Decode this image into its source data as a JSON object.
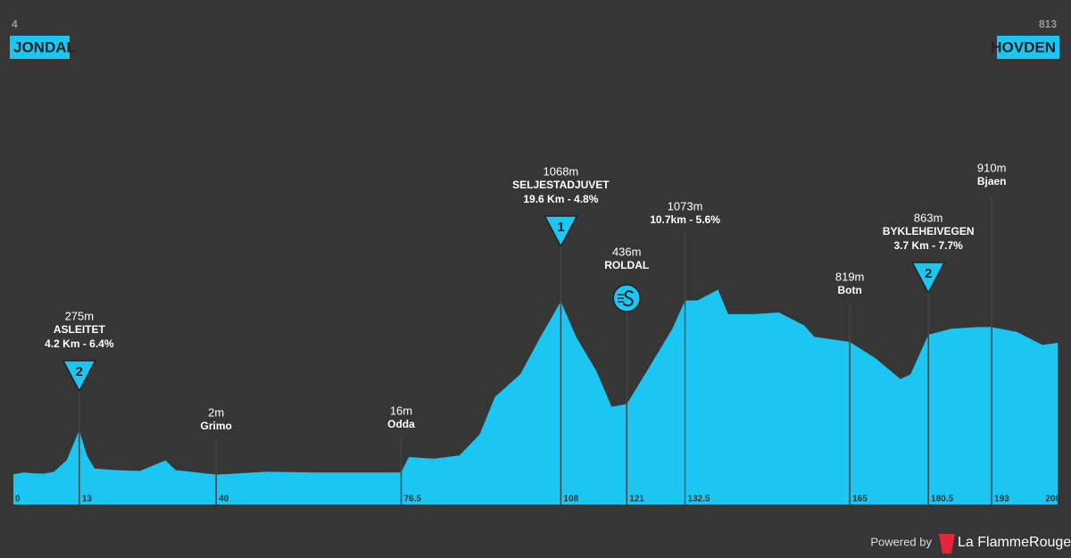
{
  "chart_data": {
    "type": "area",
    "color": "#1cc6f3",
    "xlim": [
      0,
      206
    ],
    "start": {
      "elevation": 4,
      "name": "JONDAL"
    },
    "finish": {
      "elevation": 813,
      "name": "HOVDEN"
    },
    "x": [
      0,
      2,
      4,
      6,
      8,
      10.5,
      13,
      14.5,
      16,
      20,
      25,
      30,
      32,
      40,
      50,
      60,
      70,
      76.5,
      78,
      83,
      88,
      92,
      95,
      100,
      104,
      108,
      111,
      115,
      118,
      121,
      125,
      130,
      132.5,
      135,
      139,
      141,
      146,
      151,
      156,
      158,
      165,
      170,
      175,
      177,
      180.5,
      185,
      190,
      193,
      198,
      203,
      206
    ],
    "values": [
      4,
      15,
      10,
      8,
      20,
      90,
      275,
      120,
      40,
      30,
      25,
      90,
      30,
      2,
      20,
      15,
      15,
      16,
      110,
      100,
      120,
      250,
      480,
      620,
      850,
      1068,
      850,
      640,
      420,
      436,
      640,
      900,
      1073,
      1075,
      1140,
      990,
      990,
      1000,
      920,
      850,
      819,
      720,
      590,
      620,
      863,
      900,
      910,
      910,
      880,
      800,
      813
    ],
    "xticks": [
      0,
      13,
      40,
      76.5,
      108,
      121,
      132.5,
      165,
      180.5,
      193,
      206
    ],
    "points": [
      {
        "km": 13,
        "elevation": "275m",
        "name": "ASLEITET",
        "climb": "4.2 Km - 6.4%",
        "category": "2"
      },
      {
        "km": 40,
        "elevation": "2m",
        "name": "Grimo"
      },
      {
        "km": 76.5,
        "elevation": "16m",
        "name": "Odda"
      },
      {
        "km": 108,
        "elevation": "1068m",
        "name": "SELJESTADJUVET",
        "climb": "19.6 Km - 4.8%",
        "category": "1"
      },
      {
        "km": 121,
        "elevation": "436m",
        "name": "ROLDAL",
        "sprint": true
      },
      {
        "km": 132.5,
        "elevation": "1073m",
        "climb": "10.7km - 5.6%"
      },
      {
        "km": 165,
        "elevation": "819m",
        "name": "Botn"
      },
      {
        "km": 180.5,
        "elevation": "863m",
        "name": "BYKLEHEIVEGEN",
        "climb": "3.7 Km - 7.7%",
        "category": "2"
      },
      {
        "km": 193,
        "elevation": "910m",
        "name": "Bjaen"
      }
    ],
    "footer": {
      "powered": "Powered by",
      "brand": "La FlammeRouge"
    }
  }
}
